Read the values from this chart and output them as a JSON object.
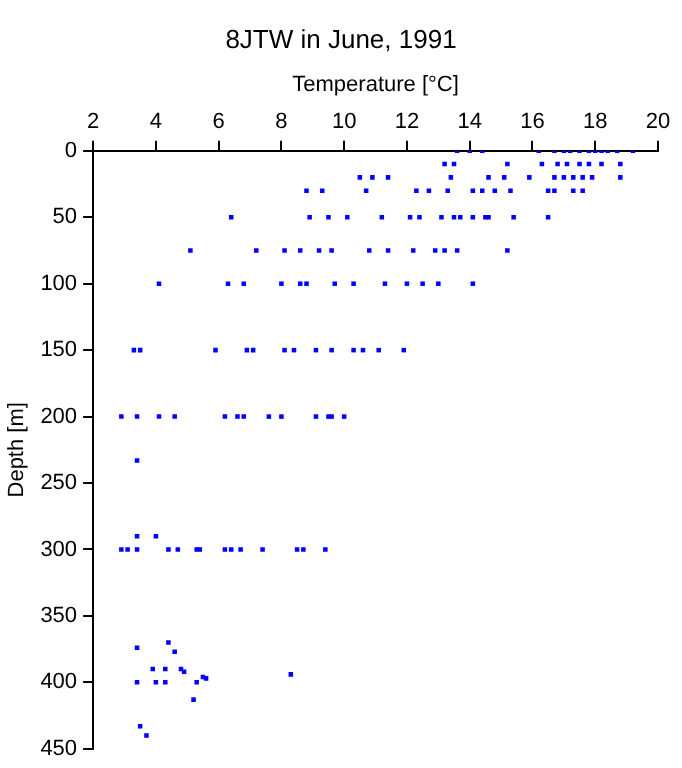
{
  "chart_data": {
    "type": "scatter",
    "title": "8JTW in June, 1991",
    "xlabel": "Temperature [°C]",
    "ylabel": "Depth [m]",
    "xlim": [
      2,
      20
    ],
    "xticks": [
      2,
      4,
      6,
      8,
      10,
      12,
      14,
      16,
      18,
      20
    ],
    "ylim": [
      450,
      0
    ],
    "yticks": [
      0,
      50,
      100,
      150,
      200,
      250,
      300,
      350,
      400,
      450
    ],
    "grid": false,
    "legend": false,
    "marker": "square",
    "series": [
      {
        "color": "#0000ff",
        "x": [
          13.6,
          14.0,
          14.4,
          16.2,
          16.7,
          17.0,
          17.2,
          17.5,
          17.8,
          18.0,
          18.2,
          18.4,
          18.7,
          19.2,
          13.2,
          13.5,
          15.2,
          16.3,
          16.8,
          17.1,
          17.5,
          17.8,
          18.2,
          18.8,
          10.5,
          10.9,
          11.4,
          13.4,
          14.6,
          15.1,
          15.9,
          16.7,
          17.0,
          17.3,
          17.6,
          17.9,
          18.8,
          8.8,
          9.3,
          10.7,
          12.3,
          12.7,
          13.3,
          14.1,
          14.4,
          14.8,
          15.3,
          16.5,
          16.7,
          17.3,
          17.6,
          6.4,
          8.9,
          9.5,
          10.1,
          11.2,
          12.1,
          12.4,
          13.1,
          13.5,
          13.7,
          14.1,
          14.5,
          14.6,
          15.4,
          16.5,
          5.1,
          7.2,
          8.1,
          8.6,
          9.2,
          9.6,
          10.8,
          11.4,
          12.2,
          12.9,
          13.2,
          13.6,
          15.2,
          4.1,
          6.3,
          6.8,
          8.0,
          8.6,
          8.8,
          9.7,
          10.3,
          11.3,
          12.0,
          12.5,
          13.0,
          14.1,
          3.3,
          3.5,
          5.9,
          6.9,
          7.1,
          8.1,
          8.4,
          9.1,
          9.6,
          10.3,
          10.6,
          11.1,
          11.9,
          2.9,
          3.4,
          4.1,
          4.6,
          6.2,
          6.6,
          6.8,
          7.6,
          8.0,
          9.1,
          9.5,
          9.6,
          10.0,
          3.4,
          3.4,
          4.0,
          2.9,
          3.1,
          3.4,
          4.4,
          4.7,
          5.3,
          5.4,
          6.2,
          6.4,
          6.7,
          7.4,
          8.5,
          8.7,
          9.4,
          3.4,
          4.4,
          4.6,
          3.9,
          4.3,
          4.8,
          4.9,
          3.4,
          4.0,
          4.3,
          5.3,
          5.5,
          5.6,
          5.2,
          8.3,
          3.5,
          3.7
        ],
        "values": [
          0,
          0,
          0,
          0,
          0,
          0,
          0,
          0,
          0,
          0,
          0,
          0,
          0,
          0,
          10,
          10,
          10,
          10,
          10,
          10,
          10,
          10,
          10,
          10,
          20,
          20,
          20,
          20,
          20,
          20,
          20,
          20,
          20,
          20,
          20,
          20,
          20,
          30,
          30,
          30,
          30,
          30,
          30,
          30,
          30,
          30,
          30,
          30,
          30,
          30,
          30,
          50,
          50,
          50,
          50,
          50,
          50,
          50,
          50,
          50,
          50,
          50,
          50,
          50,
          50,
          50,
          75,
          75,
          75,
          75,
          75,
          75,
          75,
          75,
          75,
          75,
          75,
          75,
          75,
          100,
          100,
          100,
          100,
          100,
          100,
          100,
          100,
          100,
          100,
          100,
          100,
          100,
          150,
          150,
          150,
          150,
          150,
          150,
          150,
          150,
          150,
          150,
          150,
          150,
          150,
          200,
          200,
          200,
          200,
          200,
          200,
          200,
          200,
          200,
          200,
          200,
          200,
          200,
          233,
          290,
          290,
          300,
          300,
          300,
          300,
          300,
          300,
          300,
          300,
          300,
          300,
          300,
          300,
          300,
          300,
          374,
          370,
          377,
          390,
          390,
          390,
          392,
          400,
          400,
          400,
          400,
          396,
          397,
          413,
          394,
          433,
          440
        ]
      }
    ]
  }
}
